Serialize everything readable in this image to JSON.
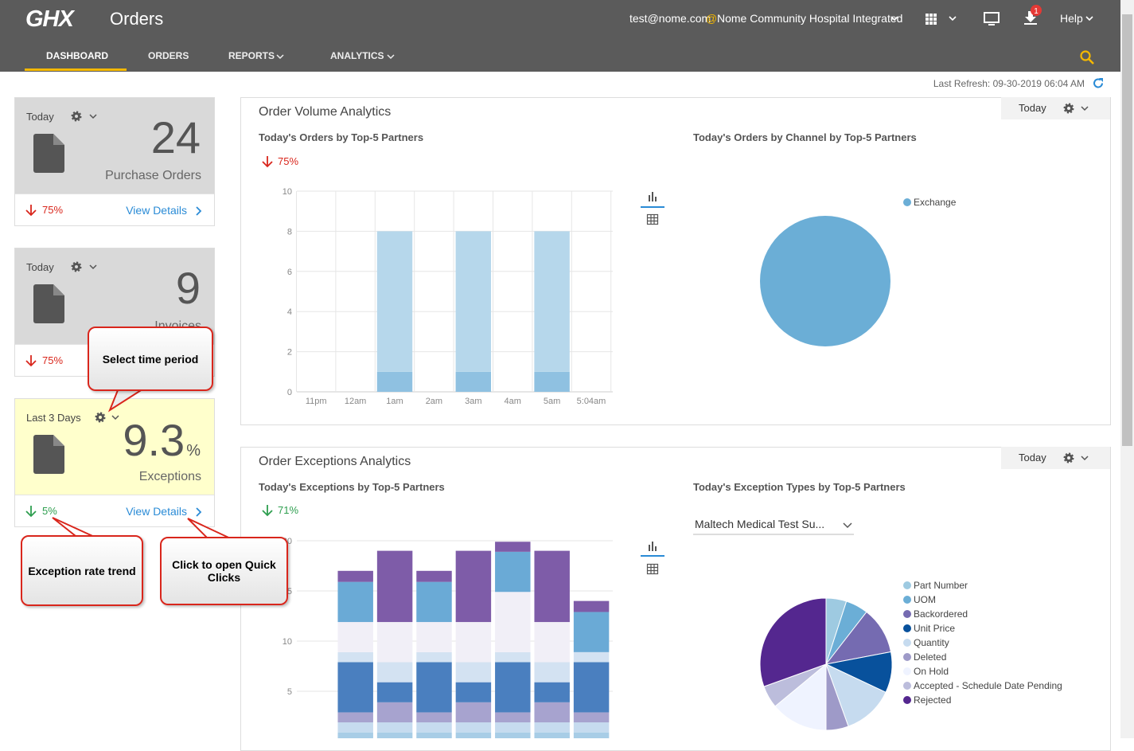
{
  "header": {
    "logo": "GHX",
    "app": "Orders",
    "user": "test@nome.com",
    "at": "@",
    "org": "Nome Community Hospital Integrated",
    "badge": "1",
    "help": "Help"
  },
  "nav": [
    "DASHBOARD",
    "ORDERS",
    "REPORTS",
    "ANALYTICS"
  ],
  "last_refresh": "Last Refresh: 09-30-2019 06:04 AM",
  "cards": [
    {
      "period": "Today",
      "value": "24",
      "label": "Purchase Orders",
      "trend": "75%",
      "link": "View Details"
    },
    {
      "period": "Today",
      "value": "9",
      "label": "Invoices",
      "trend": "75%"
    },
    {
      "period": "Last 3 Days",
      "value": "9.3",
      "unit": "%",
      "label": "Exceptions",
      "trend": "5%",
      "link": "View Details"
    }
  ],
  "callouts": [
    "Select time period",
    "Exception rate trend",
    "Click to open Quick Clicks"
  ],
  "panels": [
    {
      "title": "Order Volume Analytics",
      "period": "Today",
      "trend": "75%"
    },
    {
      "title": "Order Exceptions Analytics",
      "period": "Today",
      "trend": "71%",
      "filter": "Maltech Medical Test Su..."
    }
  ],
  "chart_data": [
    {
      "type": "bar",
      "title": "Today's Orders by Top-5 Partners",
      "categories": [
        "11pm",
        "12am",
        "1am",
        "2am",
        "3am",
        "4am",
        "5am",
        "5:04am"
      ],
      "series": [
        {
          "color": "#8fc1e1",
          "values": [
            0,
            0,
            1,
            0,
            1,
            0,
            1,
            0
          ]
        },
        {
          "color": "#b6d7eb",
          "values": [
            0,
            0,
            7,
            0,
            7,
            0,
            7,
            0
          ]
        }
      ],
      "ylim": [
        0,
        10
      ],
      "yticks": [
        0,
        2,
        4,
        6,
        8,
        10
      ],
      "grid": true
    },
    {
      "type": "pie",
      "title": "Today's Orders by Channel by Top-5 Partners",
      "categories": [
        "Exchange"
      ],
      "values": [
        100
      ],
      "colors": [
        "#6baed6"
      ]
    },
    {
      "type": "bar",
      "title": "Today's Exceptions by Top-5 Partners",
      "categories": [
        null,
        null,
        null,
        null,
        null,
        null,
        null
      ],
      "series": [
        {
          "color": "#a8cde6",
          "values": [
            0.9,
            0.9,
            0.9,
            0.9,
            0.9,
            0.9,
            0.9
          ]
        },
        {
          "color": "#c6dbef",
          "values": [
            1,
            1,
            1,
            1,
            1,
            1,
            1
          ]
        },
        {
          "color": "#a7a3cf",
          "values": [
            1,
            2,
            1,
            2,
            1,
            2,
            1
          ]
        },
        {
          "color": "#4a7fbf",
          "values": [
            5,
            2,
            5,
            2,
            5,
            2,
            5
          ]
        },
        {
          "color": "#d3e2f2",
          "values": [
            1,
            2,
            1,
            2,
            1,
            2,
            1
          ]
        },
        {
          "color": "#f1eff7",
          "values": [
            3,
            4,
            3,
            4,
            6,
            4,
            0
          ]
        },
        {
          "color": "#6aaad6",
          "values": [
            4,
            0,
            4,
            0,
            4,
            0,
            4
          ]
        },
        {
          "color": "#7e5ca8",
          "values": [
            1.1,
            7.1,
            1.1,
            7.1,
            1,
            7.1,
            1.1
          ]
        }
      ],
      "ylim": [
        0,
        20
      ],
      "yticks": [
        0,
        5,
        10,
        15,
        20
      ],
      "grid": true
    },
    {
      "type": "pie",
      "title": "Today's Exception Types by Top-5 Partners",
      "categories": [
        "Part Number",
        "UOM",
        "Backordered",
        "Unit Price",
        "Quantity",
        "Deleted",
        "On Hold",
        "Accepted - Schedule Date Pending",
        "Rejected"
      ],
      "values": [
        5,
        5.5,
        11.5,
        10,
        12.5,
        5.5,
        14,
        5.5,
        30.5
      ],
      "colors": [
        "#9ecae1",
        "#6baed6",
        "#756bb1",
        "#08519c",
        "#c6dbef",
        "#9e9ac8",
        "#eff3ff",
        "#bcbddc",
        "#54278f"
      ],
      "legend": "right"
    }
  ]
}
